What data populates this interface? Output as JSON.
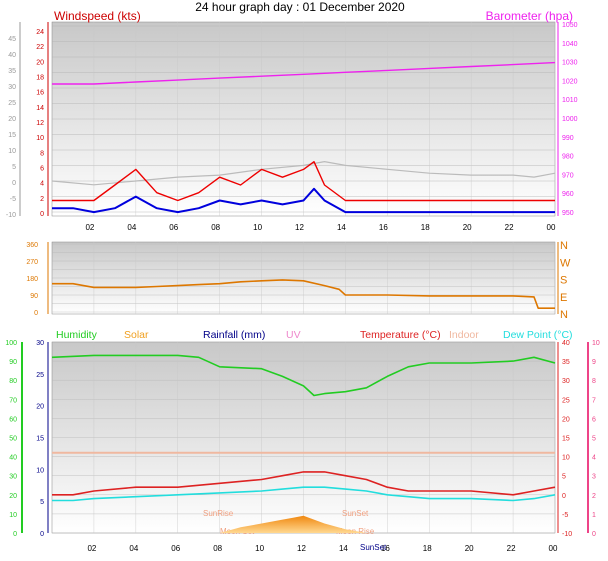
{
  "title": "24 hour graph day : 01 December 2020",
  "x_ticks": [
    "02",
    "04",
    "06",
    "08",
    "10",
    "12",
    "14",
    "16",
    "18",
    "20",
    "22",
    "00"
  ],
  "colors": {
    "wind_avg": "#0000dd",
    "wind_gust": "#ee0000",
    "temp_trace_grey": "#bbbbbb",
    "barometer": "#ee22ee",
    "direction": "#dd7700",
    "humidity": "#22cc22",
    "temperature": "#dd2222",
    "dewpoint": "#22dddd",
    "indoor": "#f0b8a0",
    "solar": "#f0a020",
    "uv_axis": "#ee4488"
  },
  "chart_data": [
    {
      "type": "line",
      "title": "24 hour graph day : 01 December 2020",
      "ylabel_left": "Windspeed (kts)",
      "ylabel_right": "Barometer (hpa)",
      "left_outer_ticks": [
        "45",
        "40",
        "35",
        "30",
        "25",
        "20",
        "15",
        "10",
        "5",
        "0",
        "-5",
        "-10"
      ],
      "left_inner_ticks": [
        "24",
        "22",
        "20",
        "18",
        "16",
        "14",
        "12",
        "10",
        "8",
        "6",
        "4",
        "2",
        "0"
      ],
      "right_ticks": [
        "1050",
        "1040",
        "1030",
        "1020",
        "1010",
        "1000",
        "990",
        "980",
        "970",
        "960",
        "950"
      ],
      "xlim": [
        0,
        24
      ],
      "ylim_wind": [
        0,
        25
      ],
      "ylim_baro": [
        950,
        1050
      ],
      "series": [
        {
          "name": "Barometer (hpa)",
          "axis": "baro",
          "x": [
            0,
            2,
            4,
            6,
            8,
            10,
            12,
            14,
            16,
            18,
            20,
            22,
            24
          ],
          "values": [
            1016,
            1016,
            1017,
            1018,
            1019,
            1020,
            1021,
            1022,
            1023,
            1024,
            1025,
            1026,
            1027
          ]
        },
        {
          "name": "Windspeed (kts)",
          "axis": "wind",
          "x": [
            0,
            1,
            2,
            3,
            4,
            5,
            6,
            7,
            8,
            9,
            10,
            11,
            12,
            12.5,
            13,
            14,
            15,
            16,
            17,
            18,
            19,
            20,
            21,
            22,
            23,
            24
          ],
          "values": [
            1,
            1,
            0.5,
            1,
            2.5,
            1,
            0.5,
            1,
            2,
            1.5,
            2,
            1.5,
            2,
            3.5,
            2,
            0.5,
            0.5,
            0.5,
            0.5,
            0.5,
            0.5,
            0.5,
            0.5,
            0.5,
            0.5,
            0.5
          ]
        },
        {
          "name": "Gust",
          "axis": "wind",
          "x": [
            0,
            1,
            2,
            3,
            4,
            5,
            6,
            7,
            8,
            9,
            10,
            11,
            12,
            12.5,
            13,
            14,
            15,
            16,
            17,
            18,
            19,
            20,
            21,
            22,
            23,
            24
          ],
          "values": [
            2,
            2,
            2,
            4,
            6,
            3,
            2,
            3,
            5,
            4,
            6,
            5,
            6,
            7,
            4,
            2,
            2,
            2,
            2,
            2,
            2,
            2,
            2,
            2,
            2,
            2
          ]
        },
        {
          "name": "Trace",
          "axis": "baro",
          "x": [
            0,
            2,
            4,
            6,
            8,
            10,
            12,
            13,
            14,
            16,
            18,
            20,
            22,
            23,
            24
          ],
          "values": [
            966,
            964,
            966,
            968,
            969,
            972,
            974,
            976,
            974,
            972,
            970,
            969,
            969,
            968,
            970
          ]
        }
      ]
    },
    {
      "type": "line",
      "ylabel_left_ticks": [
        "360",
        "270",
        "180",
        "90",
        "0"
      ],
      "right_labels": [
        "N",
        "W",
        "S",
        "E",
        "N"
      ],
      "ylim": [
        0,
        360
      ],
      "series": [
        {
          "name": "Wind direction",
          "x": [
            0,
            1,
            2,
            3,
            4,
            5,
            6,
            7,
            8,
            9,
            10,
            11,
            12,
            13,
            13.7,
            14,
            16,
            18,
            20,
            22,
            23,
            23.2,
            24
          ],
          "values": [
            150,
            150,
            130,
            130,
            130,
            135,
            140,
            145,
            150,
            160,
            165,
            170,
            165,
            140,
            120,
            90,
            90,
            85,
            85,
            85,
            80,
            20,
            20
          ]
        }
      ]
    },
    {
      "type": "line",
      "legend": [
        "Humidity",
        "Solar",
        "Rainfall (mm)",
        "UV",
        "Temperature (°C)",
        "Indoor",
        "Dew Point (°C)"
      ],
      "humidity_ticks": [
        "100",
        "90",
        "80",
        "70",
        "60",
        "50",
        "40",
        "30",
        "20",
        "10",
        "0"
      ],
      "rain_ticks": [
        "30",
        "25",
        "20",
        "15",
        "10",
        "5",
        "0"
      ],
      "temp_ticks": [
        "40",
        "35",
        "30",
        "25",
        "20",
        "15",
        "10",
        "5",
        "0",
        "-5",
        "-10"
      ],
      "uv_ticks": [
        "10",
        "9",
        "8",
        "7",
        "6",
        "5",
        "4",
        "3",
        "2",
        "1",
        "0"
      ],
      "annotations": [
        "SunRise",
        "Moon Set",
        "SunSet",
        "Moon Rise",
        "SunSet"
      ],
      "xlim": [
        0,
        24
      ],
      "ylim_humidity": [
        0,
        100
      ],
      "ylim_temp": [
        -10,
        40
      ],
      "series": [
        {
          "name": "Humidity",
          "axis": "humidity",
          "x": [
            0,
            2,
            4,
            6,
            7,
            8,
            10,
            11,
            12,
            12.5,
            13,
            14,
            15,
            16,
            17,
            18,
            20,
            22,
            23,
            24
          ],
          "values": [
            92,
            93,
            93,
            93,
            92,
            87,
            86,
            82,
            77,
            72,
            73,
            74,
            76,
            82,
            87,
            89,
            89,
            90,
            92,
            89
          ]
        },
        {
          "name": "Temperature (°C)",
          "axis": "temp",
          "x": [
            0,
            1,
            2,
            4,
            6,
            8,
            10,
            11,
            12,
            13,
            14,
            15,
            16,
            17,
            18,
            20,
            22,
            23,
            24
          ],
          "values": [
            0,
            0,
            1,
            2,
            2,
            3,
            4,
            5,
            6,
            6,
            5,
            4,
            2,
            1,
            1,
            1,
            0,
            1,
            2
          ]
        },
        {
          "name": "Dew Point (°C)",
          "axis": "temp",
          "x": [
            0,
            1,
            2,
            4,
            6,
            8,
            10,
            11,
            12,
            13,
            14,
            15,
            16,
            17,
            18,
            20,
            22,
            23,
            24
          ],
          "values": [
            -1.5,
            -1.5,
            -1,
            -0.5,
            0,
            0.5,
            1,
            1.5,
            2,
            2,
            1.5,
            1,
            0,
            -0.5,
            -1,
            -1,
            -1.5,
            -1,
            0
          ]
        },
        {
          "name": "Indoor",
          "axis": "temp",
          "x": [
            0,
            4,
            8,
            12,
            16,
            20,
            24
          ],
          "values": [
            11,
            11,
            11,
            11,
            11,
            11,
            11
          ]
        },
        {
          "name": "Solar",
          "axis": "humidity",
          "x": [
            8,
            9,
            10,
            11,
            11.5,
            12,
            12.5,
            13,
            14,
            15
          ],
          "values": [
            0,
            3,
            5,
            7,
            8,
            9,
            7,
            5,
            2,
            0
          ]
        }
      ]
    }
  ]
}
